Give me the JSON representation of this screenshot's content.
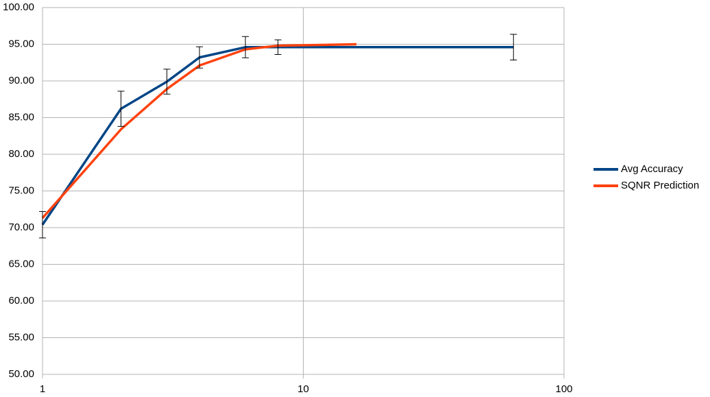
{
  "chart_data": {
    "type": "line",
    "xscale": "log",
    "grid": true,
    "legend": "right",
    "xlim": [
      1,
      100
    ],
    "xticks": [
      1,
      10,
      100
    ],
    "ylim": [
      50,
      100
    ],
    "yticks": [
      {
        "value": 50,
        "label": "50.00"
      },
      {
        "value": 55,
        "label": "55.00"
      },
      {
        "value": 60,
        "label": "60.00"
      },
      {
        "value": 65,
        "label": "65.00"
      },
      {
        "value": 70,
        "label": "70.00"
      },
      {
        "value": 75,
        "label": "75.00"
      },
      {
        "value": 80,
        "label": "80.00"
      },
      {
        "value": 85,
        "label": "85.00"
      },
      {
        "value": 90,
        "label": "90.00"
      },
      {
        "value": 95,
        "label": "95.00"
      },
      {
        "value": 100,
        "label": "100.00"
      }
    ],
    "series": [
      {
        "name": "Avg Accuracy",
        "color": "#004586",
        "x": [
          1,
          2,
          3,
          4,
          6,
          8,
          64
        ],
        "values": [
          70.4,
          86.2,
          89.9,
          93.2,
          94.6,
          94.6,
          94.6
        ],
        "errors": [
          1.8,
          2.4,
          1.7,
          1.45,
          1.45,
          1.0,
          1.75
        ]
      },
      {
        "name": "SQNR Prediction",
        "color": "#ff420e",
        "x": [
          1,
          2,
          3,
          4,
          6,
          8,
          16
        ],
        "values": [
          71.3,
          83.4,
          88.9,
          92.1,
          94.3,
          94.8,
          95.0
        ]
      }
    ]
  }
}
